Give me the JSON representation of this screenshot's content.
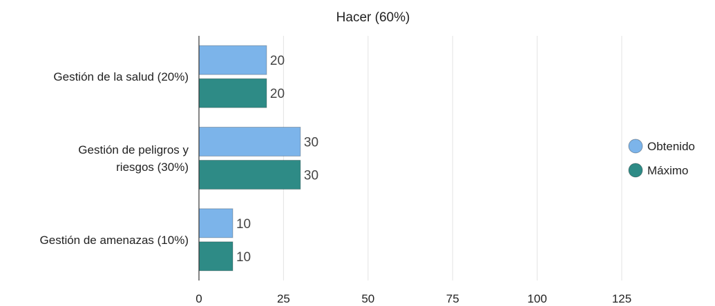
{
  "chart_data": {
    "type": "bar",
    "orientation": "horizontal",
    "title": "Hacer (60%)",
    "categories": [
      [
        "Gestión de la salud (20%)"
      ],
      [
        "Gestión de peligros y",
        "riesgos (30%)"
      ],
      [
        "Gestión de amenazas (10%)"
      ]
    ],
    "series": [
      {
        "name": "Obtenido",
        "values": [
          20,
          30,
          10
        ],
        "color": "#7cb4ea"
      },
      {
        "name": "Máximo",
        "values": [
          20,
          30,
          10
        ],
        "color": "#2e8b86"
      }
    ],
    "xlim": [
      0,
      125
    ],
    "xticks": [
      0,
      25,
      50,
      75,
      100,
      125
    ],
    "grid": true,
    "legend_position": "right",
    "data_labels": true
  }
}
